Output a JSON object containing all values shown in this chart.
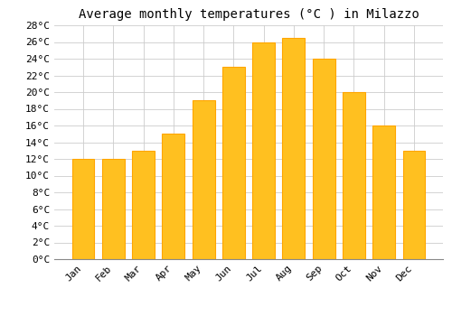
{
  "title": "Average monthly temperatures (°C ) in Milazzo",
  "months": [
    "Jan",
    "Feb",
    "Mar",
    "Apr",
    "May",
    "Jun",
    "Jul",
    "Aug",
    "Sep",
    "Oct",
    "Nov",
    "Dec"
  ],
  "values": [
    12,
    12,
    13,
    15,
    19,
    23,
    26,
    26.5,
    24,
    20,
    16,
    13
  ],
  "bar_color": "#FFC020",
  "bar_edge_color": "#FFA500",
  "background_color": "#FFFFFF",
  "grid_color": "#CCCCCC",
  "ylim": [
    0,
    28
  ],
  "yticks": [
    0,
    2,
    4,
    6,
    8,
    10,
    12,
    14,
    16,
    18,
    20,
    22,
    24,
    26,
    28
  ],
  "title_fontsize": 10,
  "tick_fontsize": 8,
  "tick_font": "monospace",
  "bar_width": 0.75
}
